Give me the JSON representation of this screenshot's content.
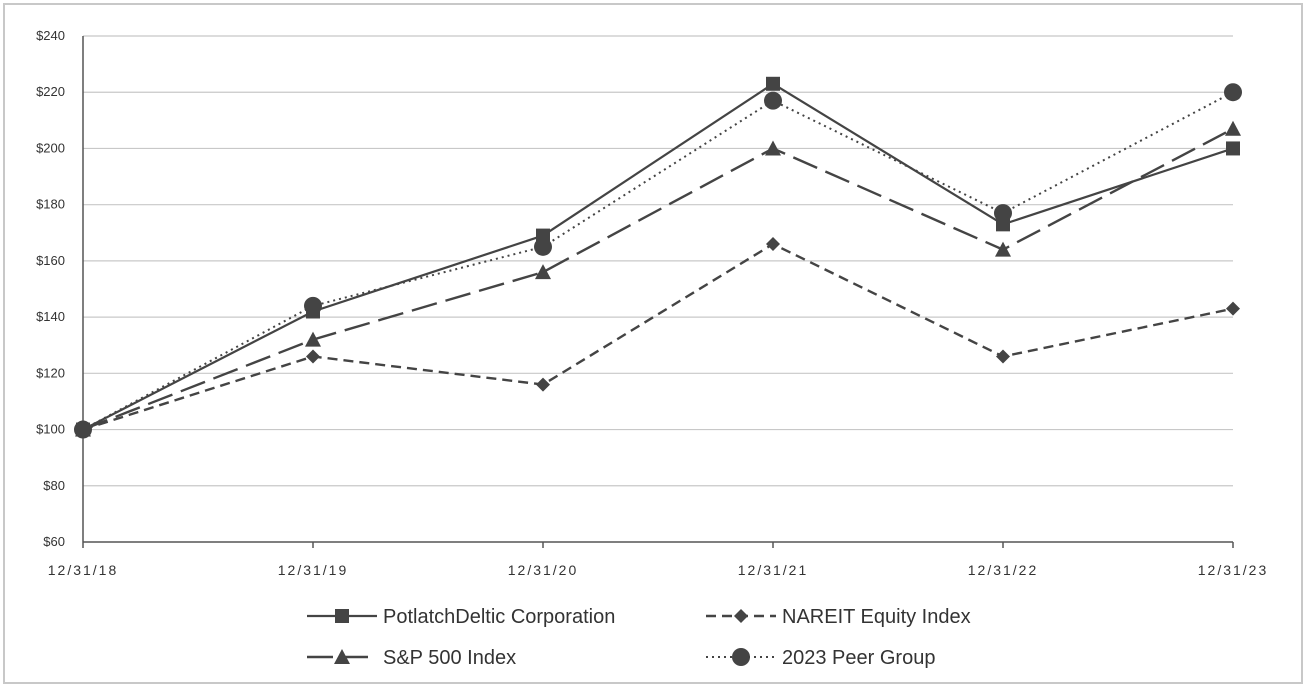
{
  "chart_data": {
    "type": "line",
    "categories": [
      "12/31/18",
      "12/31/19",
      "12/31/20",
      "12/31/21",
      "12/31/22",
      "12/31/23"
    ],
    "ylim": [
      60,
      240
    ],
    "yticks": [
      60,
      80,
      100,
      120,
      140,
      160,
      180,
      200,
      220,
      240
    ],
    "ytick_labels": [
      "$60",
      "$80",
      "$100",
      "$120",
      "$140",
      "$160",
      "$180",
      "$200",
      "$220",
      "$240"
    ],
    "grid": true,
    "legend_position": "bottom",
    "series": [
      {
        "name": "PotlatchDeltic Corporation",
        "marker": "square",
        "dash": "solid",
        "color": "#444444",
        "values": [
          100,
          142,
          169,
          223,
          173,
          200
        ]
      },
      {
        "name": "NAREIT Equity Index",
        "marker": "diamond",
        "dash": "dashed",
        "color": "#444444",
        "values": [
          100,
          126,
          116,
          166,
          126,
          143
        ]
      },
      {
        "name": "S&P 500 Index",
        "marker": "triangle",
        "dash": "longdash",
        "color": "#444444",
        "values": [
          100,
          132,
          156,
          200,
          164,
          207
        ]
      },
      {
        "name": "2023 Peer Group",
        "marker": "circle",
        "dash": "dotted",
        "color": "#444444",
        "values": [
          100,
          144,
          165,
          217,
          177,
          220
        ]
      }
    ]
  }
}
